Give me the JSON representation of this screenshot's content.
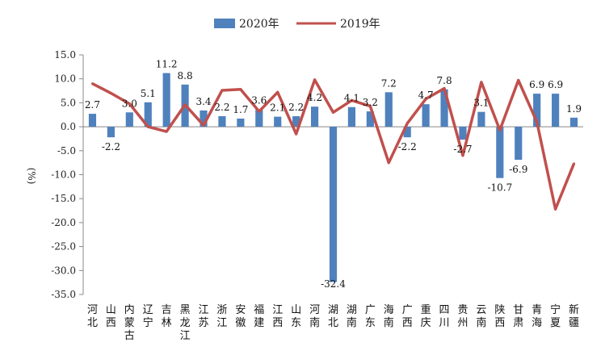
{
  "chart_data": {
    "type": "bar",
    "ylabel": "(%)",
    "ylim": [
      -35,
      15
    ],
    "ytick_step": 5,
    "grid": false,
    "legend_position": "top-center",
    "categories": [
      "河北",
      "山西",
      "内蒙古",
      "辽宁",
      "吉林",
      "黑龙江",
      "江苏",
      "浙江",
      "安徽",
      "福建",
      "江西",
      "山东",
      "河南",
      "湖北",
      "湖南",
      "广东",
      "海南",
      "广西",
      "重庆",
      "四川",
      "贵州",
      "云南",
      "陕西",
      "甘肃",
      "青海",
      "宁夏",
      "新疆"
    ],
    "series": [
      {
        "name": "2020年",
        "type": "bar",
        "color": "#4f81bd",
        "values": [
          2.7,
          -2.2,
          3.0,
          5.1,
          11.2,
          8.8,
          3.4,
          2.2,
          1.7,
          3.6,
          2.1,
          2.2,
          4.2,
          -32.4,
          4.1,
          3.2,
          7.2,
          -2.2,
          4.7,
          7.8,
          -2.7,
          3.1,
          -10.7,
          -6.9,
          6.9,
          6.9,
          1.9
        ],
        "labels": [
          "2.7",
          "-2.2",
          "3.0",
          "5.1",
          "11.2",
          "8.8",
          "3.4",
          "2.2",
          "1.7",
          "3.6",
          "2.1",
          "2.2",
          "4.2",
          "-32.4",
          "4.1",
          "3.2",
          "7.2",
          "-2.2",
          "4.7",
          "7.8",
          "-2.7",
          "3.1",
          "-10.7",
          "-6.9",
          "6.9",
          "6.9",
          "1.9"
        ]
      },
      {
        "name": "2019年",
        "type": "line",
        "color": "#c0504d",
        "values": [
          9.0,
          7.0,
          4.8,
          0.0,
          -1.0,
          4.6,
          0.3,
          7.6,
          7.8,
          3.2,
          7.2,
          -1.5,
          9.8,
          3.0,
          5.5,
          4.3,
          -7.5,
          0.7,
          5.8,
          8.0,
          -6.0,
          9.3,
          -0.7,
          9.7,
          1.0,
          -17.2,
          -7.7
        ]
      }
    ]
  }
}
